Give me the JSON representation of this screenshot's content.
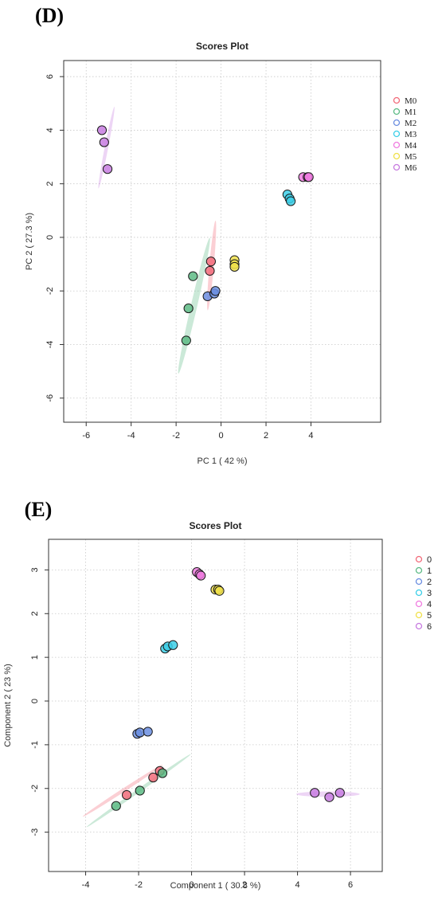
{
  "chart_data": [
    {
      "panel_label": "(D)",
      "type": "scatter",
      "title": "Scores Plot",
      "xlabel": "PC 1 ( 42 %)",
      "ylabel": "PC 2 ( 27.3 %)",
      "xlim": [
        -7,
        7.1
      ],
      "ylim": [
        -6.9,
        6.6
      ],
      "xticks": [
        -6,
        -4,
        -2,
        0,
        2,
        4
      ],
      "yticks": [
        -6,
        -4,
        -2,
        0,
        2,
        4,
        6
      ],
      "grid": true,
      "legend_position": "right",
      "series": [
        {
          "name": "M0",
          "color": "#f26b7a",
          "points": [
            [
              -0.45,
              -0.9
            ],
            [
              -0.5,
              -1.25
            ]
          ],
          "ellipse": {
            "cx": -0.42,
            "cy": -1.05,
            "rx": 2.0,
            "ry": 0.1,
            "angle_deg": 85
          }
        },
        {
          "name": "M1",
          "color": "#5dbb85",
          "points": [
            [
              -1.55,
              -3.85
            ],
            [
              -1.45,
              -2.65
            ],
            [
              -1.25,
              -1.45
            ]
          ],
          "ellipse": {
            "cx": -1.2,
            "cy": -2.55,
            "rx": 3.1,
            "ry": 0.14,
            "angle_deg": 77
          }
        },
        {
          "name": "M2",
          "color": "#6b8ee0",
          "points": [
            [
              -0.6,
              -2.2
            ],
            [
              -0.3,
              -2.1
            ],
            [
              -0.25,
              -2.0
            ]
          ]
        },
        {
          "name": "M3",
          "color": "#3ccfe8",
          "points": [
            [
              2.95,
              1.6
            ],
            [
              3.05,
              1.45
            ],
            [
              3.1,
              1.35
            ]
          ]
        },
        {
          "name": "M4",
          "color": "#f07be0",
          "points": [
            [
              3.65,
              2.25
            ],
            [
              3.85,
              2.25
            ],
            [
              3.9,
              2.25
            ]
          ]
        },
        {
          "name": "M5",
          "color": "#f0e04a",
          "points": [
            [
              0.6,
              -0.85
            ],
            [
              0.6,
              -1.0
            ],
            [
              0.6,
              -1.1
            ]
          ]
        },
        {
          "name": "M6",
          "color": "#c77be0",
          "points": [
            [
              -5.3,
              4.0
            ],
            [
              -5.2,
              3.55
            ],
            [
              -5.05,
              2.55
            ]
          ],
          "ellipse": {
            "cx": -5.1,
            "cy": 3.35,
            "rx": 1.85,
            "ry": 0.07,
            "angle_deg": 79
          }
        }
      ]
    },
    {
      "panel_label": "(E)",
      "type": "scatter",
      "title": "Scores Plot",
      "xlabel": "Component 1 ( 30.8 %)",
      "ylabel": "Component 2 ( 23 %)",
      "xlim": [
        -5.4,
        7.2
      ],
      "ylim": [
        -3.9,
        3.7
      ],
      "xticks": [
        -4,
        -2,
        0,
        2,
        4,
        6
      ],
      "yticks": [
        -3,
        -2,
        -1,
        0,
        1,
        2,
        3
      ],
      "grid": true,
      "legend_position": "right",
      "series": [
        {
          "name": "0",
          "color": "#f26b7a",
          "points": [
            [
              -2.45,
              -2.15
            ],
            [
              -1.45,
              -1.75
            ],
            [
              -1.2,
              -1.6
            ]
          ],
          "ellipse": {
            "cx": -2.6,
            "cy": -2.05,
            "rx": 1.8,
            "ry": 0.06,
            "angle_deg": 33
          }
        },
        {
          "name": "1",
          "color": "#5dbb85",
          "points": [
            [
              -2.85,
              -2.4
            ],
            [
              -1.95,
              -2.05
            ],
            [
              -1.1,
              -1.65
            ]
          ],
          "ellipse": {
            "cx": -2.0,
            "cy": -2.05,
            "rx": 2.4,
            "ry": 0.06,
            "angle_deg": 35
          }
        },
        {
          "name": "2",
          "color": "#6b8ee0",
          "points": [
            [
              -2.05,
              -0.75
            ],
            [
              -1.95,
              -0.72
            ],
            [
              -1.65,
              -0.7
            ]
          ]
        },
        {
          "name": "3",
          "color": "#3ccfe8",
          "points": [
            [
              -1.0,
              1.2
            ],
            [
              -0.9,
              1.25
            ],
            [
              -0.7,
              1.28
            ]
          ]
        },
        {
          "name": "4",
          "color": "#f07be0",
          "points": [
            [
              0.2,
              2.95
            ],
            [
              0.3,
              2.9
            ],
            [
              0.35,
              2.87
            ]
          ]
        },
        {
          "name": "5",
          "color": "#f0e04a",
          "points": [
            [
              0.9,
              2.55
            ],
            [
              1.0,
              2.55
            ],
            [
              1.05,
              2.52
            ]
          ]
        },
        {
          "name": "6",
          "color": "#c77be0",
          "points": [
            [
              4.65,
              -2.1
            ],
            [
              5.2,
              -2.2
            ],
            [
              5.6,
              -2.1
            ]
          ],
          "ellipse": {
            "cx": 5.15,
            "cy": -2.13,
            "rx": 1.2,
            "ry": 0.1,
            "angle_deg": 0
          }
        }
      ]
    }
  ]
}
